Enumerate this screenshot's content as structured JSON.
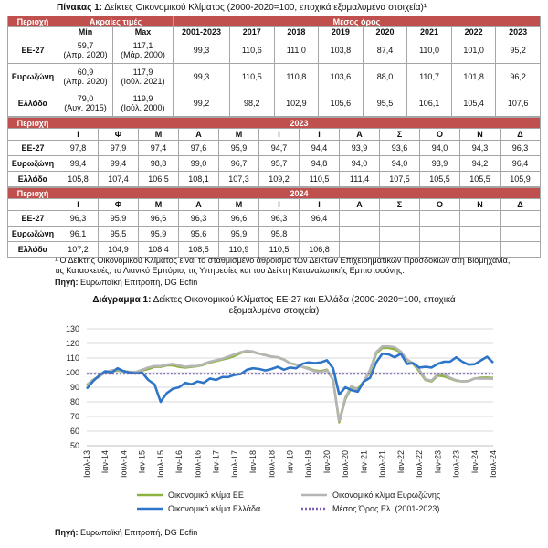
{
  "table1": {
    "title_prefix": "Πίνακας 1:",
    "title": "Δείκτες Οικονομικού Κλίματος (2000-2020=100, εποχικά εξομαλυμένα στοιχεία)¹",
    "header": [
      "Περιοχή",
      "Ακραίες τιμές",
      "Μέσος όρος"
    ],
    "subheader": [
      "Min",
      "Max",
      "2001-2023",
      "2017",
      "2018",
      "2019",
      "2020",
      "2021",
      "2022",
      "2023"
    ],
    "rows": [
      {
        "label": "ΕΕ-27",
        "min": [
          "59,7",
          "(Απρ. 2020)"
        ],
        "max": [
          "117,1",
          "(Μάρ. 2000)"
        ],
        "means": [
          "99,3",
          "110,6",
          "111,0",
          "103,8",
          "87,4",
          "110,0",
          "101,0",
          "95,2"
        ]
      },
      {
        "label": "Ευρωζώνη",
        "min": [
          "60,9",
          "(Απρ. 2020)"
        ],
        "max": [
          "117,9",
          "(Ιούλ. 2021)"
        ],
        "means": [
          "99,3",
          "110,5",
          "110,8",
          "103,6",
          "88,0",
          "110,7",
          "101,8",
          "96,2"
        ]
      },
      {
        "label": "Ελλάδα",
        "min": [
          "79,0",
          "(Αυγ. 2015)"
        ],
        "max": [
          "119,9",
          "(Ιούλ. 2000)"
        ],
        "means": [
          "99,2",
          "98,2",
          "102,9",
          "105,6",
          "95,5",
          "106,1",
          "105,4",
          "107,6"
        ]
      }
    ]
  },
  "monthly": [
    {
      "header": [
        "Περιοχή",
        "2023"
      ],
      "months": [
        "Ι",
        "Φ",
        "Μ",
        "Α",
        "Μ",
        "Ι",
        "Ι",
        "Α",
        "Σ",
        "Ο",
        "Ν",
        "Δ"
      ],
      "rows": [
        [
          "ΕΕ-27",
          "97,8",
          "97,9",
          "97,4",
          "97,6",
          "95,9",
          "94,7",
          "94,4",
          "93,9",
          "93,6",
          "94,0",
          "94,3",
          "96,3"
        ],
        [
          "Ευρωζώνη",
          "99,4",
          "99,4",
          "98,8",
          "99,0",
          "96,7",
          "95,7",
          "94,8",
          "94,0",
          "94,0",
          "93,9",
          "94,2",
          "96,4"
        ],
        [
          "Ελλάδα",
          "105,8",
          "107,4",
          "106,5",
          "108,1",
          "107,3",
          "109,2",
          "110,5",
          "111,4",
          "107,5",
          "105,5",
          "105,5",
          "105,9"
        ]
      ]
    },
    {
      "header": [
        "Περιοχή",
        "2024"
      ],
      "months": [
        "Ι",
        "Φ",
        "Μ",
        "Α",
        "Μ",
        "Ι",
        "Ι",
        "Α",
        "Σ",
        "Ο",
        "Ν",
        "Δ"
      ],
      "rows": [
        [
          "ΕΕ-27",
          "96,3",
          "95,9",
          "96,6",
          "96,3",
          "96,6",
          "96,3",
          "96,4"
        ],
        [
          "Ευρωζώνη",
          "96,1",
          "95,5",
          "95,9",
          "95,6",
          "95,9",
          "95,8"
        ],
        [
          "Ελλάδα",
          "107,2",
          "104,9",
          "108,4",
          "108,5",
          "110,9",
          "110,5",
          "106,8"
        ]
      ]
    }
  ],
  "footnote": "¹ Ο Δείκτης Οικονομικού Κλίματος είναι το σταθμισμένο άθροισμα των Δεικτών Επιχειρηματικών Προσδοκιών στη Βιομηχανία, τις Κατασκευές, το Λιανικό Εμπόριο, τις Υπηρεσίες και του Δείκτη Καταναλωτικής Εμπιστοσύνης.",
  "table_source": {
    "label": "Πηγή:",
    "text": "Ευρωπαϊκή Επιτροπή, DG Ecfin"
  },
  "chart_data": {
    "type": "line",
    "title_prefix": "Διάγραμμα 1:",
    "title": "Δείκτες Οικονομικού Κλίματος ΕΕ-27 και Ελλάδα (2000-2020=100, εποχικά εξομαλυμένα στοιχεία)",
    "categories": [
      "Ιουλ-13",
      null,
      null,
      "Ιαν-14",
      null,
      null,
      "Ιουλ-14",
      null,
      null,
      "Ιαν-15",
      null,
      null,
      "Ιουλ-15",
      null,
      null,
      "Ιαν-16",
      null,
      null,
      "Ιουλ-16",
      null,
      null,
      "Ιαν-17",
      null,
      null,
      "Ιουλ-17",
      null,
      null,
      "Ιαν-18",
      null,
      null,
      "Ιουλ-18",
      null,
      null,
      "Ιαν-19",
      null,
      null,
      "Ιουλ-19",
      null,
      null,
      "Ιαν-20",
      null,
      null,
      "Ιουλ-20",
      null,
      null,
      "Ιαν-21",
      null,
      null,
      "Ιουλ-21",
      null,
      null,
      "Ιαν-22",
      null,
      null,
      "Ιουλ-22",
      null,
      null,
      "Ιαν-23",
      null,
      null,
      "Ιουλ-23",
      null,
      null,
      "Ιαν-24",
      null,
      null,
      "Ιουλ-24"
    ],
    "series": [
      {
        "name": "Οικονομικό κλίμα ΕΕ",
        "color": "#8db33f",
        "values": [
          91.5,
          95,
          97.5,
          100,
          101,
          101.5,
          101,
          100,
          100.5,
          101.5,
          102.5,
          104,
          104,
          105,
          105,
          104,
          103.5,
          104,
          104.5,
          105.5,
          107,
          108,
          109,
          110,
          111.5,
          113.5,
          114.5,
          114,
          113,
          112,
          111,
          110.5,
          109,
          106.5,
          105.5,
          104,
          103,
          101.5,
          101,
          102,
          95,
          66,
          82,
          90,
          89,
          94,
          101,
          113,
          117,
          117,
          116,
          114,
          108.5,
          106,
          101,
          95,
          94,
          98,
          97.5,
          96,
          94.5,
          94,
          94.3,
          96,
          96.5,
          96.6,
          96.4
        ]
      },
      {
        "name": "Οικονομικό κλίμα Ευρωζώνης",
        "color": "#b5b5b5",
        "values": [
          91,
          95,
          97,
          100.5,
          101.5,
          102,
          101,
          100.5,
          100.5,
          102,
          103.5,
          104.5,
          104.5,
          105.5,
          106,
          105,
          104,
          104.5,
          104.5,
          106,
          107.5,
          108.5,
          109.5,
          111,
          112.5,
          114,
          115,
          114.5,
          113,
          112,
          111,
          110.5,
          109,
          106.5,
          105.5,
          104,
          102.5,
          101,
          100.5,
          101.5,
          95,
          67,
          83,
          91,
          88,
          94,
          102,
          114,
          118,
          118,
          117.5,
          114.5,
          109,
          106.5,
          102,
          95.5,
          94.5,
          99,
          99,
          96.5,
          94.8,
          94,
          94.2,
          96.1,
          95.9,
          95.9,
          95.8
        ]
      },
      {
        "name": "Οικονομικό κλίμα Ελλάδα",
        "color": "#2e75c8",
        "values": [
          89,
          94,
          98,
          101,
          100,
          103,
          101,
          100,
          99.5,
          100,
          95,
          92,
          80,
          86,
          89,
          90,
          93,
          92,
          94,
          93,
          96,
          95,
          97,
          97,
          98.5,
          99,
          102,
          103,
          102.5,
          101.5,
          102.5,
          104,
          102,
          103.5,
          103,
          106,
          107,
          106.5,
          107,
          108.5,
          103,
          85,
          90,
          88,
          87,
          94,
          96.5,
          107,
          113,
          112.5,
          110.5,
          113,
          106,
          106.5,
          103.5,
          104,
          103.5,
          106,
          107.5,
          107.5,
          110.5,
          107.5,
          105.5,
          105.8,
          108.4,
          110.9,
          106.8
        ]
      }
    ],
    "hlines": [
      {
        "name": "Μέσος Όρος Ελ. (2001-2023)",
        "value": 99.2,
        "color": "#7a5fb0"
      }
    ],
    "ylim": [
      50,
      130
    ],
    "yticks": [
      50,
      60,
      70,
      80,
      90,
      100,
      110,
      120,
      130
    ],
    "grid": true,
    "legend": "bottom",
    "source": {
      "label": "Πηγή:",
      "text": "Ευρωπαϊκή Επιτροπή, DG Ecfin"
    }
  }
}
